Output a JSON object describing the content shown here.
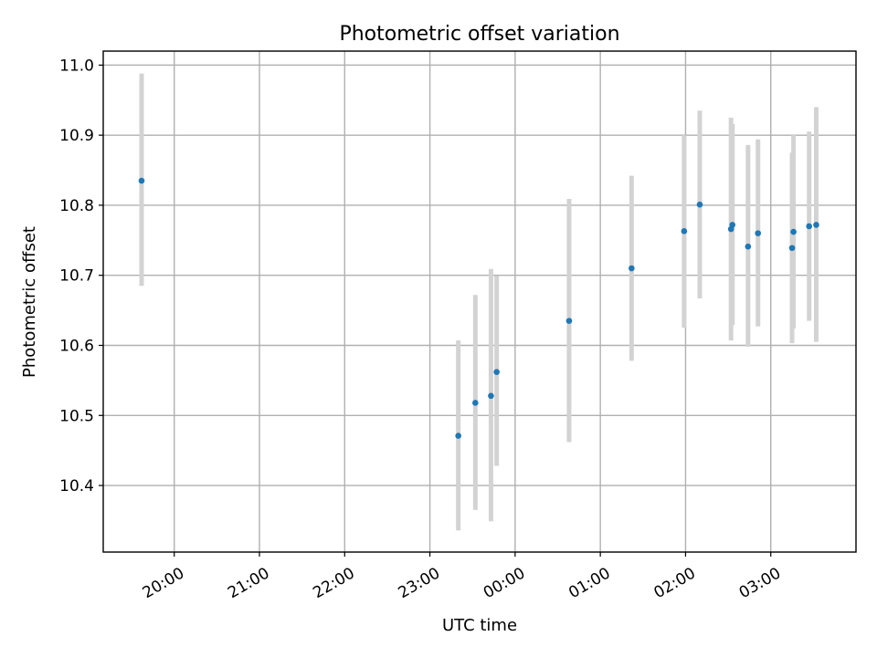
{
  "chart_data": {
    "type": "scatter",
    "title": "Photometric offset variation",
    "xlabel": "UTC time",
    "ylabel": "Photometric offset",
    "x_is_time": true,
    "xlim": [
      "19:10",
      "04:00"
    ],
    "ylim": [
      10.305,
      11.02
    ],
    "x_ticks": [
      "20:00",
      "21:00",
      "22:00",
      "23:00",
      "00:00",
      "01:00",
      "02:00",
      "03:00"
    ],
    "y_ticks": [
      "10.4",
      "10.5",
      "10.6",
      "10.7",
      "10.8",
      "10.9",
      "11.0"
    ],
    "grid": true,
    "marker_color": "#1f77b4",
    "errorbar_color": "#d3d3d3",
    "points": [
      {
        "x": "19:37",
        "y": 10.835,
        "ylow": 10.685,
        "yhigh": 10.988
      },
      {
        "x": "23:20",
        "y": 10.471,
        "ylow": 10.336,
        "yhigh": 10.607
      },
      {
        "x": "23:32",
        "y": 10.518,
        "ylow": 10.365,
        "yhigh": 10.672
      },
      {
        "x": "23:43",
        "y": 10.528,
        "ylow": 10.349,
        "yhigh": 10.709
      },
      {
        "x": "23:47",
        "y": 10.562,
        "ylow": 10.428,
        "yhigh": 10.699
      },
      {
        "x": "00:38",
        "y": 10.635,
        "ylow": 10.462,
        "yhigh": 10.809
      },
      {
        "x": "01:22",
        "y": 10.71,
        "ylow": 10.578,
        "yhigh": 10.842
      },
      {
        "x": "01:59",
        "y": 10.763,
        "ylow": 10.625,
        "yhigh": 10.9
      },
      {
        "x": "02:10",
        "y": 10.801,
        "ylow": 10.667,
        "yhigh": 10.935
      },
      {
        "x": "02:32",
        "y": 10.766,
        "ylow": 10.607,
        "yhigh": 10.925
      },
      {
        "x": "02:33",
        "y": 10.772,
        "ylow": 10.629,
        "yhigh": 10.916
      },
      {
        "x": "02:44",
        "y": 10.741,
        "ylow": 10.598,
        "yhigh": 10.886
      },
      {
        "x": "02:51",
        "y": 10.76,
        "ylow": 10.627,
        "yhigh": 10.894
      },
      {
        "x": "03:15",
        "y": 10.739,
        "ylow": 10.603,
        "yhigh": 10.875
      },
      {
        "x": "03:16",
        "y": 10.762,
        "ylow": 10.624,
        "yhigh": 10.9
      },
      {
        "x": "03:27",
        "y": 10.77,
        "ylow": 10.635,
        "yhigh": 10.905
      },
      {
        "x": "03:32",
        "y": 10.772,
        "ylow": 10.605,
        "yhigh": 10.94
      }
    ]
  }
}
